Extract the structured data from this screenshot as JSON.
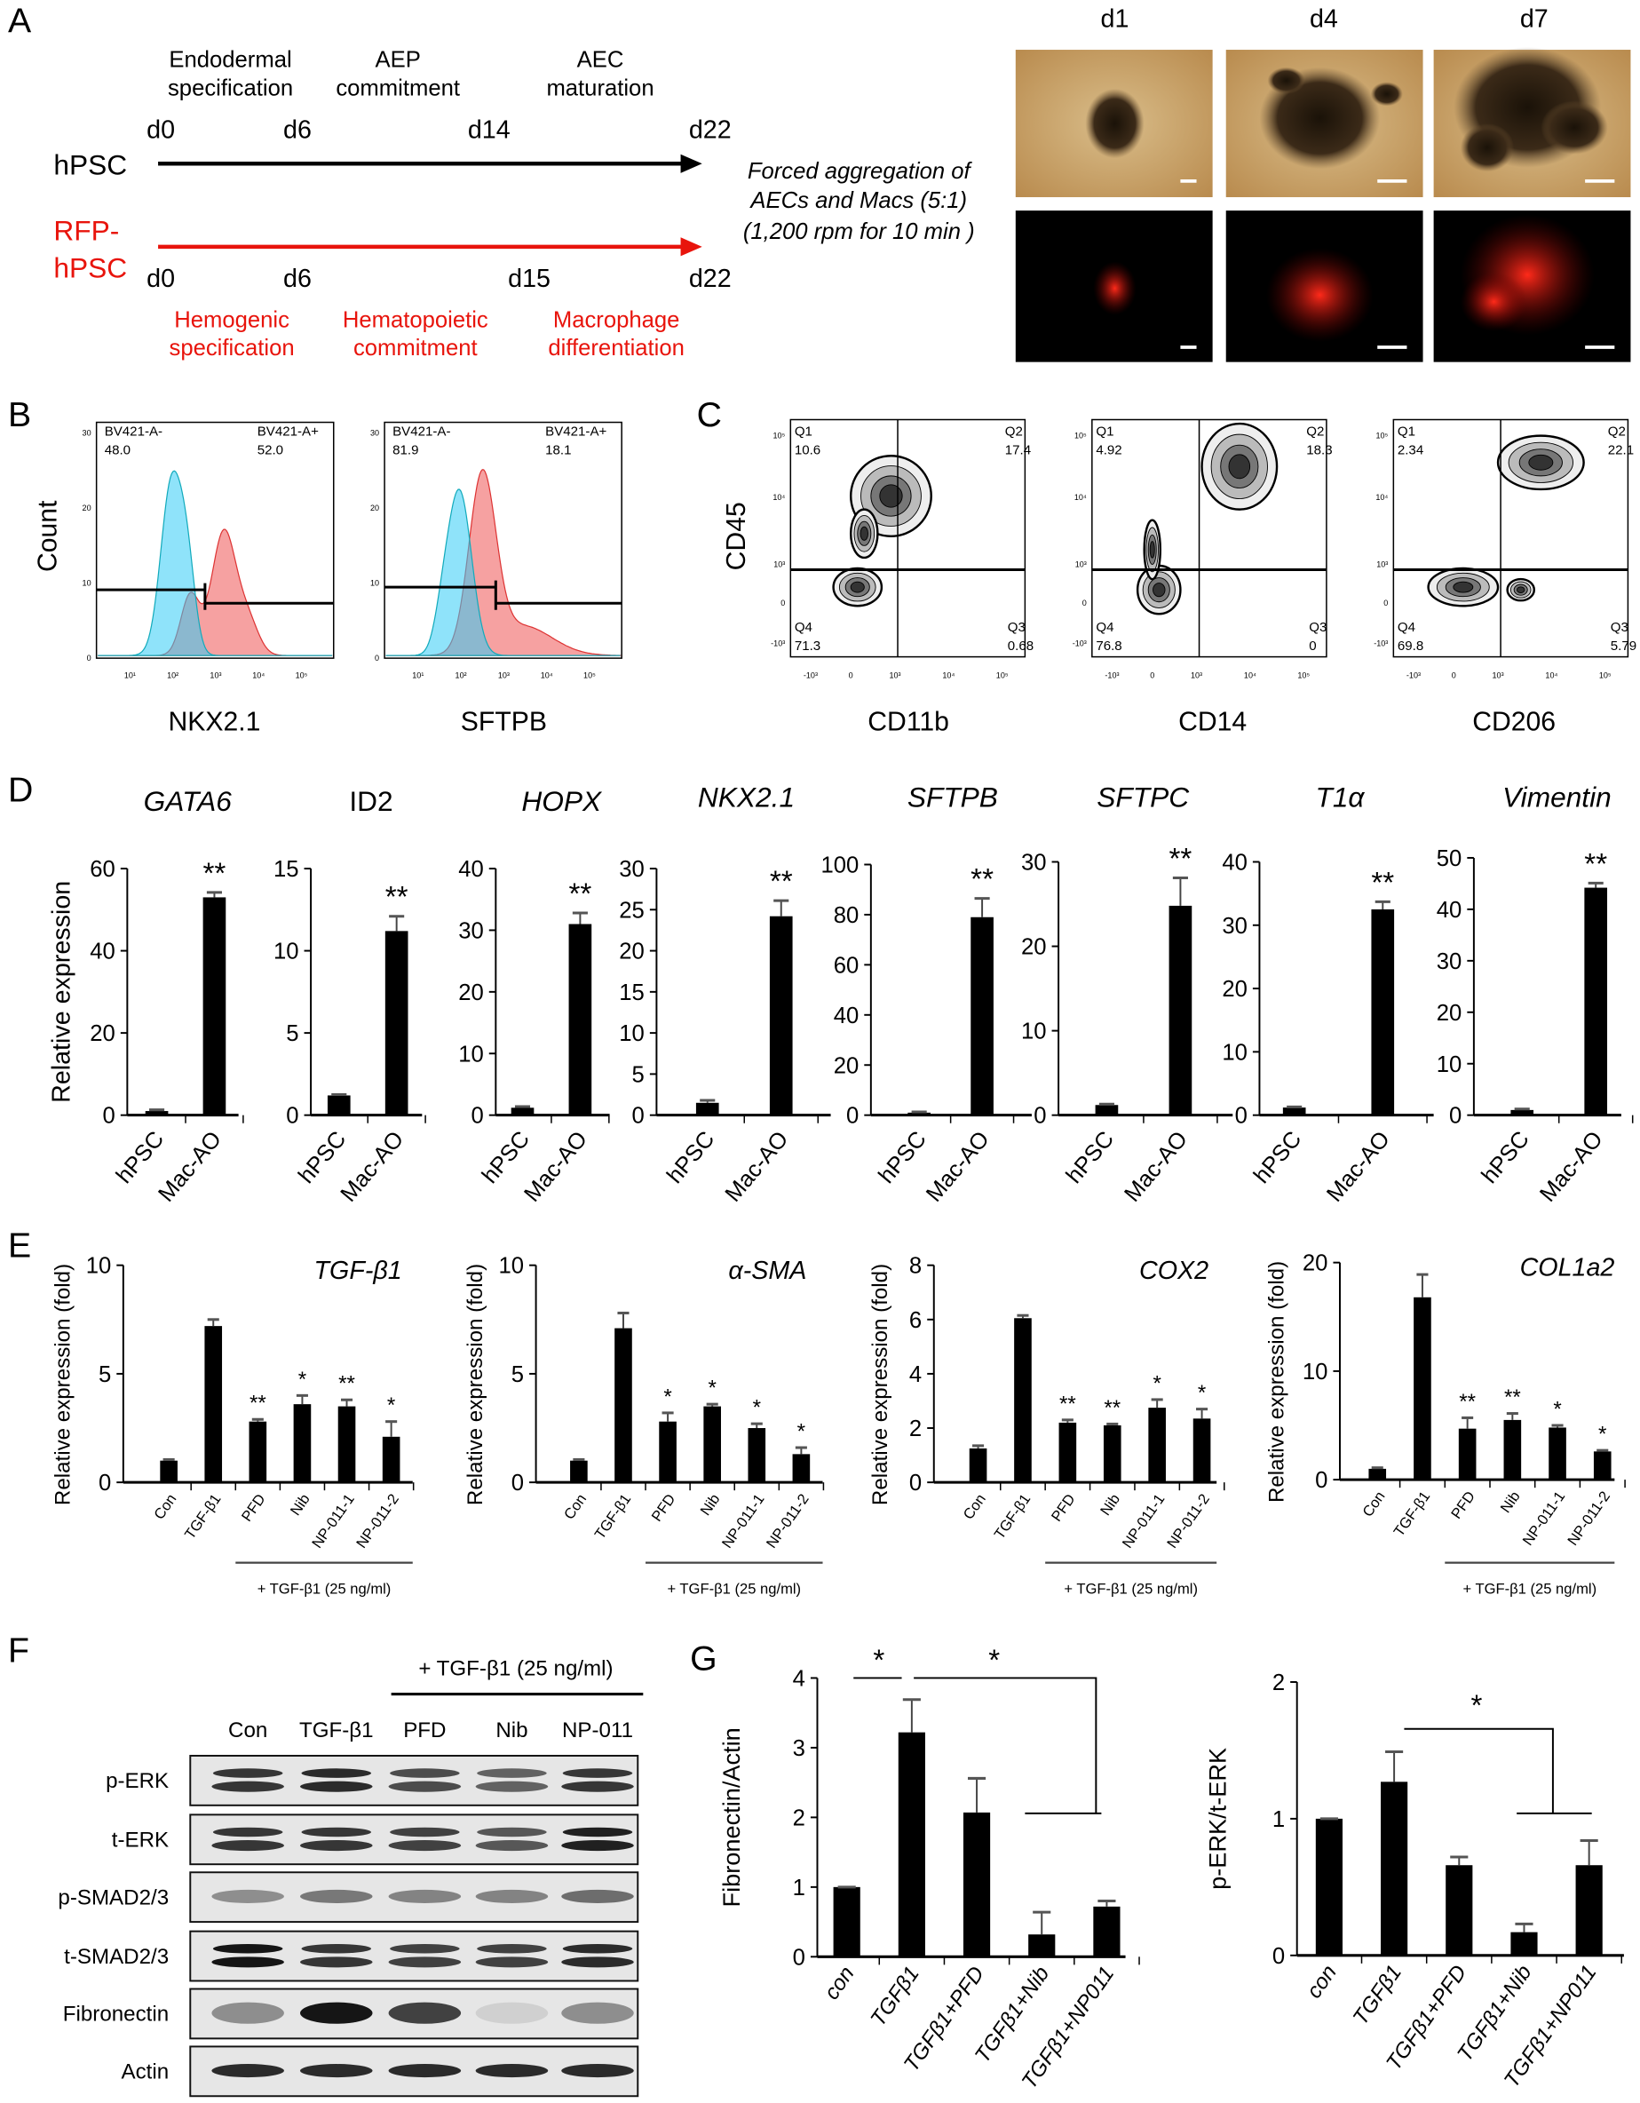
{
  "panel_letters": [
    "A",
    "B",
    "C",
    "D",
    "E",
    "F",
    "G"
  ],
  "panelA": {
    "hpsc_label": "hPSC",
    "rfp_label_1": "RFP-",
    "rfp_label_2": "hPSC",
    "top_days": [
      "d0",
      "d6",
      "d14",
      "d22"
    ],
    "bottom_days": [
      "d0",
      "d6",
      "d15",
      "d22"
    ],
    "top_stages": [
      [
        "Endodermal",
        "specification"
      ],
      [
        "AEP",
        "commitment"
      ],
      [
        "AEC",
        "maturation"
      ]
    ],
    "bottom_stages": [
      [
        "Hemogenic",
        "specification"
      ],
      [
        "Hematopoietic",
        "commitment"
      ],
      [
        "Macrophage",
        "differentiation"
      ]
    ],
    "aggregation_text": [
      "Forced aggregation of",
      "AECs and Macs (5:1)",
      "(1,200 rpm for 10 min )"
    ],
    "image_days": [
      "d1",
      "d4",
      "d7"
    ],
    "colors": {
      "red": "#e8140c",
      "black": "#000000"
    }
  },
  "panelB": {
    "ylabel": "Count",
    "yticks": [
      "0",
      "10",
      "20",
      "30"
    ],
    "xticks": [
      "10¹",
      "10²",
      "10³",
      "10⁴",
      "10⁵"
    ],
    "plots": [
      {
        "xlabel": "NKX2.1",
        "neg_gate": "BV421-A-",
        "neg_value": "48.0",
        "pos_gate": "BV421-A+",
        "pos_value": "52.0"
      },
      {
        "xlabel": "SFTPB",
        "neg_gate": "BV421-A-",
        "neg_value": "81.9",
        "pos_gate": "BV421-A+",
        "pos_value": "18.1"
      }
    ],
    "colors": {
      "control": "#33ccf5",
      "sample": "#f06262"
    }
  },
  "panelC": {
    "ylabel": "CD45",
    "yticks": [
      "10⁵",
      "10⁴",
      "10³",
      "0",
      "-10³"
    ],
    "xticks": [
      "-10³",
      "0",
      "10³",
      "10⁴",
      "10⁵"
    ],
    "plots": [
      {
        "xlabel": "CD11b",
        "q1": "10.6",
        "q2": "17.4",
        "q3": "0.68",
        "q4": "71.3"
      },
      {
        "xlabel": "CD14",
        "q1": "4.92",
        "q2": "18.3",
        "q3": "0",
        "q4": "76.8"
      },
      {
        "xlabel": "CD206",
        "q1": "2.34",
        "q2": "22.1",
        "q3": "5.79",
        "q4": "69.8"
      }
    ],
    "quadrant_names": [
      "Q1",
      "Q2",
      "Q3",
      "Q4"
    ]
  },
  "panelD": {
    "ylabel": "Relative expression"
  },
  "panelE": {
    "ylabel": "Relative expression (fold)",
    "treatment_label": "+ TGF-β1 (25 ng/ml)"
  },
  "panelF": {
    "treatment_label": "+ TGF-β1 (25 ng/ml)",
    "lanes": [
      "Con",
      "TGF-β1",
      "PFD",
      "Nib",
      "NP-011"
    ],
    "rows": [
      {
        "label": "p-ERK",
        "band_intensity": [
          0.8,
          0.85,
          0.7,
          0.6,
          0.8
        ]
      },
      {
        "label": "t-ERK",
        "band_intensity": [
          0.8,
          0.8,
          0.75,
          0.65,
          0.9
        ]
      },
      {
        "label": "p-SMAD2/3",
        "band_intensity": [
          0.4,
          0.5,
          0.45,
          0.45,
          0.55
        ]
      },
      {
        "label": "t-SMAD2/3",
        "band_intensity": [
          0.95,
          0.8,
          0.75,
          0.75,
          0.85
        ]
      },
      {
        "label": "Fibronectin",
        "band_intensity": [
          0.4,
          0.95,
          0.75,
          0.1,
          0.4
        ]
      },
      {
        "label": "Actin",
        "band_intensity": [
          0.85,
          0.85,
          0.85,
          0.85,
          0.85
        ]
      }
    ]
  },
  "panelG": {
    "significance": [
      "*",
      "*",
      "*"
    ]
  },
  "chart_data": [
    {
      "panel": "D",
      "type": "bar",
      "title": "GATA6",
      "italic": true,
      "categories": [
        "hPSC",
        "Mac-AO"
      ],
      "values": [
        1.0,
        53.0
      ],
      "errors": [
        0.3,
        1.2
      ],
      "significance": [
        "",
        "**"
      ],
      "ylim": [
        0,
        60
      ],
      "yticks": [
        "0",
        "20",
        "40",
        "60"
      ],
      "ylabel": "Relative expression"
    },
    {
      "panel": "D",
      "type": "bar",
      "title": "ID2",
      "italic": false,
      "categories": [
        "hPSC",
        "Mac-AO"
      ],
      "values": [
        1.2,
        11.2
      ],
      "errors": [
        0.05,
        0.9
      ],
      "significance": [
        "",
        "**"
      ],
      "ylim": [
        0,
        15
      ],
      "yticks": [
        "0",
        "5",
        "10",
        "15"
      ],
      "ylabel": ""
    },
    {
      "panel": "D",
      "type": "bar",
      "title": "HOPX",
      "italic": true,
      "categories": [
        "hPSC",
        "Mac-AO"
      ],
      "values": [
        1.2,
        31.0
      ],
      "errors": [
        0.2,
        1.8
      ],
      "significance": [
        "",
        "**"
      ],
      "ylim": [
        0,
        40
      ],
      "yticks": [
        "0",
        "10",
        "20",
        "30",
        "40"
      ],
      "ylabel": ""
    },
    {
      "panel": "D",
      "type": "bar",
      "title": "NKX2.1",
      "italic": true,
      "categories": [
        "hPSC",
        "Mac-AO"
      ],
      "values": [
        1.5,
        24.2
      ],
      "errors": [
        0.3,
        1.9
      ],
      "significance": [
        "",
        "**"
      ],
      "ylim": [
        0,
        30
      ],
      "yticks": [
        "0",
        "5",
        "10",
        "15",
        "20",
        "25",
        "30"
      ],
      "ylabel": ""
    },
    {
      "panel": "D",
      "type": "bar",
      "title": "SFTPB",
      "italic": true,
      "categories": [
        "hPSC",
        "Mac-AO"
      ],
      "values": [
        1.0,
        79.0
      ],
      "errors": [
        0.3,
        7.5
      ],
      "significance": [
        "",
        "**"
      ],
      "ylim": [
        0,
        100
      ],
      "yticks": [
        "0",
        "20",
        "40",
        "60",
        "80",
        "100"
      ],
      "ylabel": ""
    },
    {
      "panel": "D",
      "type": "bar",
      "title": "SFTPC",
      "italic": true,
      "categories": [
        "hPSC",
        "Mac-AO"
      ],
      "values": [
        1.2,
        24.8
      ],
      "errors": [
        0.1,
        3.3
      ],
      "significance": [
        "",
        "**"
      ],
      "ylim": [
        0,
        30
      ],
      "yticks": [
        "0",
        "10",
        "20",
        "30"
      ],
      "ylabel": ""
    },
    {
      "panel": "D",
      "type": "bar",
      "title": "T1α",
      "italic": true,
      "categories": [
        "hPSC",
        "Mac-AO"
      ],
      "values": [
        1.2,
        32.5
      ],
      "errors": [
        0.1,
        1.2
      ],
      "significance": [
        "",
        "**"
      ],
      "ylim": [
        0,
        40
      ],
      "yticks": [
        "0",
        "10",
        "20",
        "30",
        "40"
      ],
      "ylabel": ""
    },
    {
      "panel": "D",
      "type": "bar",
      "title": "Vimentin",
      "italic": true,
      "categories": [
        "hPSC",
        "Mac-AO"
      ],
      "values": [
        1.0,
        44.2
      ],
      "errors": [
        0.2,
        0.9
      ],
      "significance": [
        "",
        "**"
      ],
      "ylim": [
        0,
        50
      ],
      "yticks": [
        "0",
        "10",
        "20",
        "30",
        "40",
        "50"
      ],
      "ylabel": ""
    },
    {
      "panel": "E",
      "type": "bar",
      "title": "TGF-β1",
      "italic": true,
      "categories": [
        "Con",
        "TGF-β1",
        "PFD",
        "Nib",
        "NP-011-1",
        "NP-011-2"
      ],
      "values": [
        1.0,
        7.2,
        2.8,
        3.6,
        3.5,
        2.1
      ],
      "errors": [
        0.05,
        0.3,
        0.1,
        0.4,
        0.3,
        0.7
      ],
      "significance": [
        "",
        "",
        "**",
        "*",
        "**",
        "*"
      ],
      "ylim": [
        0,
        10
      ],
      "yticks": [
        "0",
        "5",
        "10"
      ],
      "ylabel": "Relative expression (fold)"
    },
    {
      "panel": "E",
      "type": "bar",
      "title": "α-SMA",
      "italic": true,
      "categories": [
        "Con",
        "TGF-β1",
        "PFD",
        "Nib",
        "NP-011-1",
        "NP-011-2"
      ],
      "values": [
        1.0,
        7.1,
        2.8,
        3.5,
        2.5,
        1.3
      ],
      "errors": [
        0.05,
        0.7,
        0.4,
        0.1,
        0.2,
        0.3
      ],
      "significance": [
        "",
        "",
        "*",
        "*",
        "*",
        "*"
      ],
      "ylim": [
        0,
        10
      ],
      "yticks": [
        "0",
        "5",
        "10"
      ],
      "ylabel": "Relative expression (fold)"
    },
    {
      "panel": "E",
      "type": "bar",
      "title": "COX2",
      "italic": true,
      "categories": [
        "Con",
        "TGF-β1",
        "PFD",
        "Nib",
        "NP-011-1",
        "NP-011-2"
      ],
      "values": [
        1.25,
        6.05,
        2.2,
        2.1,
        2.75,
        2.35
      ],
      "errors": [
        0.1,
        0.1,
        0.1,
        0.05,
        0.3,
        0.35
      ],
      "significance": [
        "",
        "",
        "**",
        "**",
        "*",
        "*"
      ],
      "ylim": [
        0,
        8
      ],
      "yticks": [
        "0",
        "2",
        "4",
        "6",
        "8"
      ],
      "ylabel": "Relative expression (fold)"
    },
    {
      "panel": "E",
      "type": "bar",
      "title": "COL1a2",
      "italic": true,
      "categories": [
        "Con",
        "TGF-β1",
        "PFD",
        "Nib",
        "NP-011-1",
        "NP-011-2"
      ],
      "values": [
        1.0,
        16.8,
        4.7,
        5.5,
        4.8,
        2.6
      ],
      "errors": [
        0.1,
        2.1,
        1.0,
        0.6,
        0.2,
        0.1
      ],
      "significance": [
        "",
        "",
        "**",
        "**",
        "*",
        "*"
      ],
      "ylim": [
        0,
        20
      ],
      "yticks": [
        "0",
        "10",
        "20"
      ],
      "ylabel": "Relative expression (fold)"
    },
    {
      "panel": "G",
      "type": "bar",
      "title": "",
      "italic": false,
      "categories": [
        "con",
        "TGFβ1",
        "TGFβ1+PFD",
        "TGFβ1+Nib",
        "TGFβ1+NP011"
      ],
      "values": [
        1.0,
        3.22,
        2.07,
        0.32,
        0.72
      ],
      "errors": [
        0.0,
        0.47,
        0.49,
        0.32,
        0.08
      ],
      "significance": [
        "",
        "",
        "",
        "",
        ""
      ],
      "ylim": [
        0,
        4
      ],
      "yticks": [
        "0",
        "1",
        "2",
        "3",
        "4"
      ],
      "ylabel": "Fibronectin/Actin"
    },
    {
      "panel": "G",
      "type": "bar",
      "title": "",
      "italic": false,
      "categories": [
        "con",
        "TGFβ1",
        "TGFβ1+PFD",
        "TGFβ1+Nib",
        "TGFβ1+NP011"
      ],
      "values": [
        1.0,
        1.27,
        0.66,
        0.17,
        0.66
      ],
      "errors": [
        0.0,
        0.22,
        0.06,
        0.06,
        0.18
      ],
      "significance": [
        "",
        "",
        "",
        "",
        ""
      ],
      "ylim": [
        0,
        2
      ],
      "yticks": [
        "0",
        "1",
        "2"
      ],
      "ylabel": "p-ERK/t-ERK"
    }
  ]
}
